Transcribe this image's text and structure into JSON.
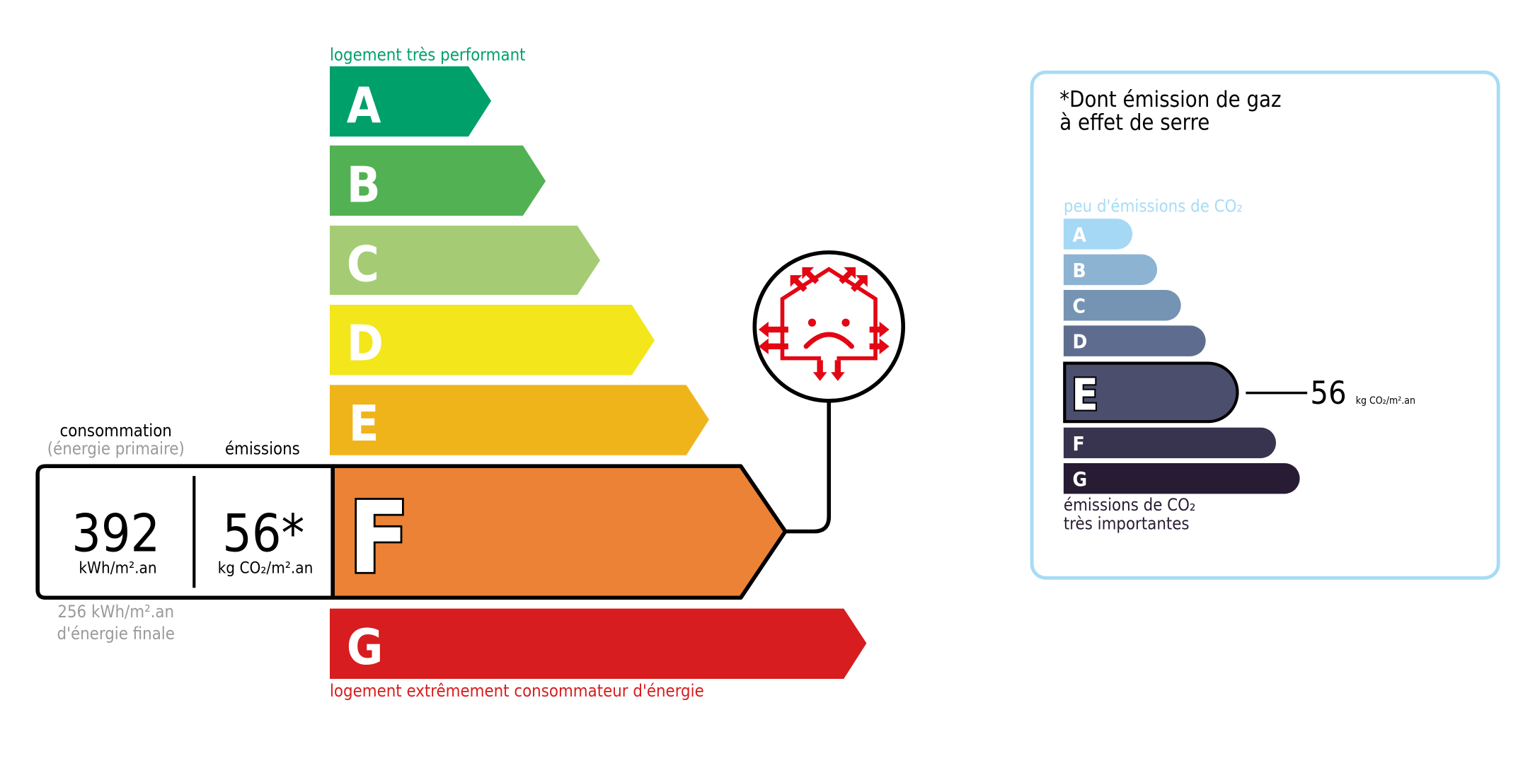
{
  "energy_scale": {
    "top_label": "logement très performant",
    "bottom_label": "logement extrêmement consommateur d'énergie",
    "active_class": "F",
    "classes": [
      {
        "letter": "A",
        "color": "#00a06b"
      },
      {
        "letter": "B",
        "color": "#52b153"
      },
      {
        "letter": "C",
        "color": "#a5cc74"
      },
      {
        "letter": "D",
        "color": "#f3e61b"
      },
      {
        "letter": "E",
        "color": "#f0b41b"
      },
      {
        "letter": "F",
        "color": "#eb8235"
      },
      {
        "letter": "G",
        "color": "#d71d1f"
      }
    ],
    "top_label_color": "#00a06b",
    "bottom_label_color": "#d71d1f"
  },
  "values_box": {
    "consumption_header": "consommation",
    "consumption_subheader": "(énergie primaire)",
    "emissions_header": "émissions",
    "consumption_value": "392",
    "consumption_unit": "kWh/m².an",
    "emissions_value": "56*",
    "emissions_unit": "kg CO₂/m².an",
    "final_energy_value": "256 kWh/m².an",
    "final_energy_label": "d'énergie finale"
  },
  "badge_icon": "sad-house-heat-loss-icon",
  "ges_panel": {
    "title_line1": "*Dont émission de gaz",
    "title_line2": "à effet de serre",
    "top_label": "peu d'émissions de CO₂",
    "bottom_label_line1": "émissions de CO₂",
    "bottom_label_line2": "très importantes",
    "active_class": "E",
    "value": "56",
    "unit": "kg CO₂/m².an",
    "border_color": "#a6dcf5",
    "classes": [
      {
        "letter": "A",
        "color": "#a5d8f5"
      },
      {
        "letter": "B",
        "color": "#8db3d3"
      },
      {
        "letter": "C",
        "color": "#7594b4"
      },
      {
        "letter": "D",
        "color": "#5e6d8f"
      },
      {
        "letter": "E",
        "color": "#4c4e6e"
      },
      {
        "letter": "F",
        "color": "#38344f"
      },
      {
        "letter": "G",
        "color": "#281b34"
      }
    ]
  }
}
